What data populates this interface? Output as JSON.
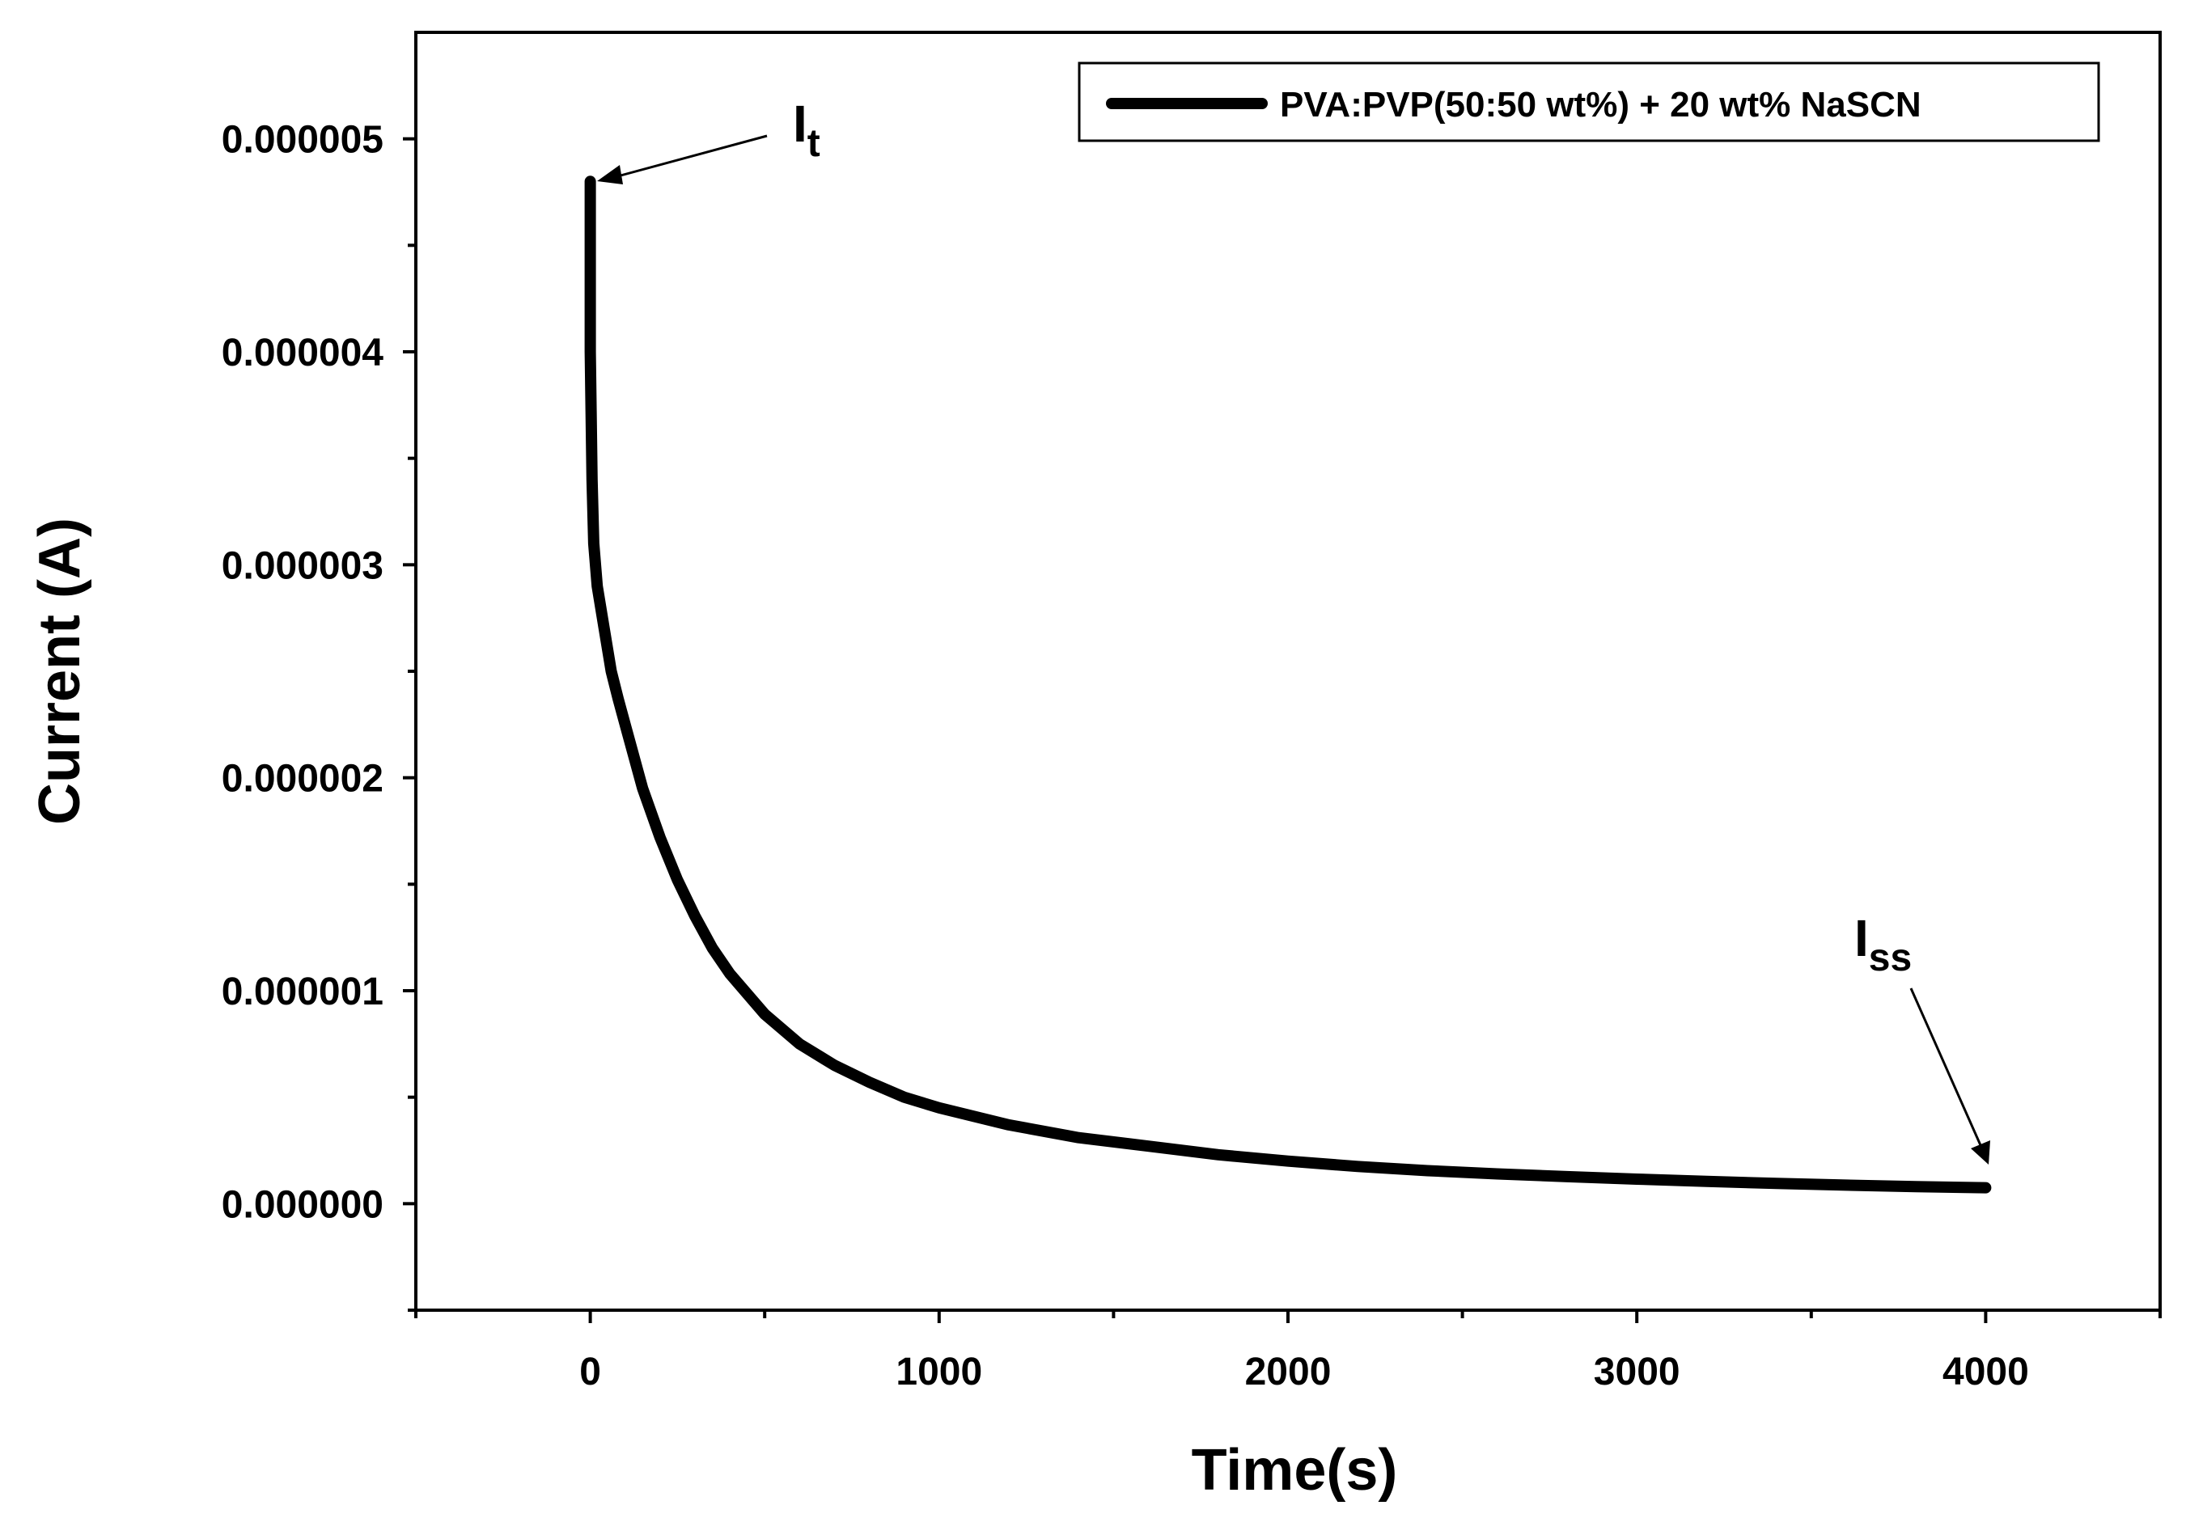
{
  "chart_data": {
    "type": "line",
    "title": "",
    "xlabel": "Time(s)",
    "ylabel": "Current (A)",
    "xlim": [
      -500,
      4500
    ],
    "ylim": [
      -5e-07,
      5.5e-06
    ],
    "x_ticks": [
      0,
      1000,
      2000,
      3000,
      4000
    ],
    "x_tick_labels": [
      "0",
      "1000",
      "2000",
      "3000",
      "4000"
    ],
    "x_minor_ticks": [
      -500,
      500,
      1500,
      2500,
      3500,
      4500
    ],
    "y_ticks": [
      0.0,
      1e-06,
      2e-06,
      3e-06,
      4e-06,
      5e-06
    ],
    "y_tick_labels": [
      "0.000000",
      "0.000001",
      "0.000002",
      "0.000003",
      "0.000004",
      "0.000005"
    ],
    "y_minor_ticks": [
      -5e-07,
      5e-07,
      1.5e-06,
      2.5e-06,
      3.5e-06,
      4.5e-06
    ],
    "grid": false,
    "legend_position": "top-right",
    "series": [
      {
        "name": "PVA:PVP(50:50 wt%) + 20 wt% NaSCN",
        "color": "#000000",
        "x": [
          0,
          0,
          5,
          10,
          20,
          40,
          60,
          80,
          100,
          150,
          200,
          250,
          300,
          350,
          400,
          500,
          600,
          700,
          800,
          900,
          1000,
          1200,
          1400,
          1600,
          1800,
          2000,
          2200,
          2400,
          2600,
          2800,
          3000,
          3200,
          3400,
          3600,
          3800,
          4000
        ],
        "y": [
          4.8e-06,
          4e-06,
          3.4e-06,
          3.1e-06,
          2.9e-06,
          2.7e-06,
          2.5e-06,
          2.37e-06,
          2.25e-06,
          1.95e-06,
          1.72e-06,
          1.52e-06,
          1.35e-06,
          1.2e-06,
          1.08e-06,
          8.9e-07,
          7.5e-07,
          6.5e-07,
          5.7e-07,
          5e-07,
          4.5e-07,
          3.7e-07,
          3.1e-07,
          2.7e-07,
          2.3e-07,
          2e-07,
          1.75e-07,
          1.55e-07,
          1.4e-07,
          1.27e-07,
          1.15e-07,
          1.05e-07,
          9.5e-08,
          8.7e-08,
          8e-08,
          7.5e-08
        ]
      }
    ],
    "annotations": [
      {
        "text": "I",
        "subscript": "t",
        "x": 0,
        "y": 4.8e-06
      },
      {
        "text": "I",
        "subscript": "ss",
        "x": 4000,
        "y": 7.5e-08
      }
    ]
  }
}
